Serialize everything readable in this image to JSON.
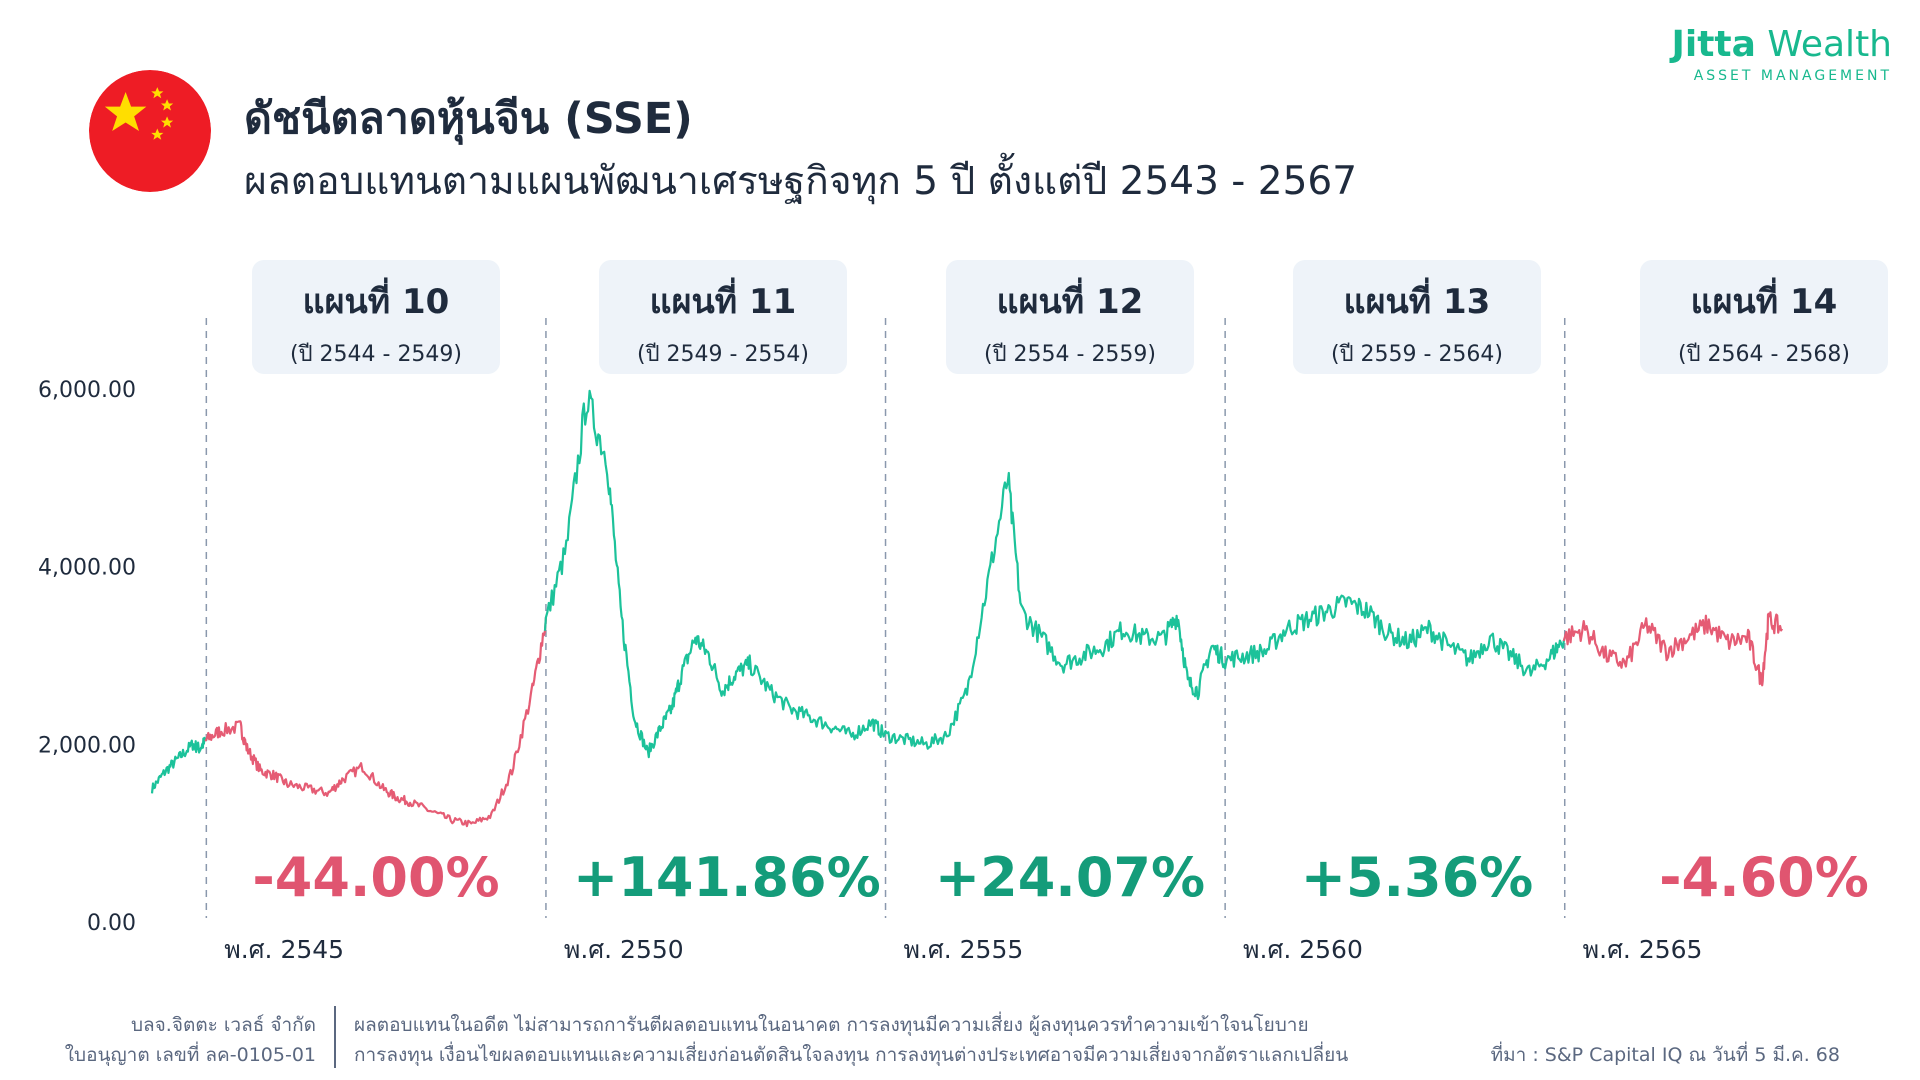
{
  "header": {
    "title": "ดัชนีตลาดหุ้นจีน (SSE)",
    "subtitle": "ผลตอบแทนตามแผนพัฒนาเศรษฐกิจทุก 5 ปี ตั้งแต่ปี 2543 - 2567"
  },
  "brand": {
    "name_bold": "Jitta",
    "name_light": " Wealth",
    "sub": "ASSET MANAGEMENT",
    "color": "#18b88e"
  },
  "colors": {
    "up": "#1cc29a",
    "down": "#e55c74",
    "up_text": "#149c7a",
    "down_text": "#e05570",
    "flag_red": "#ee1c25",
    "flag_star": "#ffde00"
  },
  "plans": [
    {
      "name": "แผนที่ 10",
      "years": "(ปี 2544 - 2549)",
      "return": "-44.00%",
      "direction": "down"
    },
    {
      "name": "แผนที่ 11",
      "years": "(ปี 2549 - 2554)",
      "return": "+141.86%",
      "direction": "up"
    },
    {
      "name": "แผนที่ 12",
      "years": "(ปี 2554 - 2559)",
      "return": "+24.07%",
      "direction": "up"
    },
    {
      "name": "แผนที่ 13",
      "years": "(ปี 2559 - 2564)",
      "return": "+5.36%",
      "direction": "up"
    },
    {
      "name": "แผนที่ 14",
      "years": "(ปี 2564 - 2568)",
      "return": "-4.60%",
      "direction": "down"
    }
  ],
  "chart_data": {
    "type": "line",
    "ylim": [
      0,
      6000
    ],
    "yticks": [
      "0.00",
      "2,000.00",
      "4,000.00",
      "6,000.00"
    ],
    "xlim": [
      2543.2,
      2568.2
    ],
    "xticks": [
      {
        "value": 2545,
        "label": "พ.ศ. 2545"
      },
      {
        "value": 2550,
        "label": "พ.ศ. 2550"
      },
      {
        "value": 2555,
        "label": "พ.ศ. 2555"
      },
      {
        "value": 2560,
        "label": "พ.ศ. 2560"
      },
      {
        "value": 2565,
        "label": "พ.ศ. 2565"
      }
    ],
    "plan_boundaries": [
      2544,
      2549,
      2554,
      2559,
      2564
    ],
    "x": [
      2543.2,
      2543.4,
      2543.6,
      2543.8,
      2543.9,
      2544.0,
      2544.2,
      2544.5,
      2544.6,
      2544.8,
      2545.0,
      2545.2,
      2545.5,
      2545.8,
      2546.0,
      2546.3,
      2546.6,
      2546.8,
      2547.0,
      2547.3,
      2547.6,
      2547.9,
      2548.2,
      2548.5,
      2548.8,
      2549.0,
      2549.3,
      2549.6,
      2549.9,
      2550.1,
      2550.3,
      2550.5,
      2550.7,
      2550.85,
      2551.0,
      2551.2,
      2551.4,
      2551.6,
      2551.8,
      2552.0,
      2552.3,
      2552.6,
      2552.9,
      2553.2,
      2553.5,
      2553.8,
      2554.0,
      2554.3,
      2554.6,
      2554.9,
      2555.2,
      2555.5,
      2555.8,
      2556.0,
      2556.3,
      2556.6,
      2556.9,
      2557.2,
      2557.5,
      2557.8,
      2558.1,
      2558.3,
      2558.45,
      2558.6,
      2558.8,
      2559.0,
      2559.3,
      2559.6,
      2559.9,
      2560.2,
      2560.5,
      2560.8,
      2561.1,
      2561.4,
      2561.7,
      2562.0,
      2562.3,
      2562.6,
      2562.9,
      2563.2,
      2563.5,
      2563.8,
      2564.0,
      2564.3,
      2564.6,
      2564.9,
      2565.2,
      2565.5,
      2565.8,
      2566.1,
      2566.4,
      2566.7,
      2566.9,
      2567.0,
      2567.2
    ],
    "y": [
      1500,
      1700,
      1850,
      2000,
      1950,
      2050,
      2150,
      2200,
      1950,
      1700,
      1650,
      1550,
      1500,
      1450,
      1600,
      1750,
      1500,
      1400,
      1350,
      1250,
      1150,
      1100,
      1200,
      1700,
      2600,
      3400,
      4200,
      5900,
      5200,
      3500,
      2300,
      1900,
      2200,
      2400,
      2800,
      3200,
      3000,
      2600,
      2800,
      2900,
      2600,
      2400,
      2300,
      2200,
      2100,
      2250,
      2100,
      2050,
      2000,
      2100,
      2600,
      3800,
      5000,
      3500,
      3200,
      2900,
      3000,
      3100,
      3300,
      3200,
      3200,
      3450,
      2700,
      2600,
      3100,
      2950,
      3000,
      3050,
      3300,
      3400,
      3500,
      3600,
      3500,
      3250,
      3150,
      3300,
      3100,
      2950,
      3200,
      3000,
      2800,
      3000,
      3200,
      3300,
      3000,
      2900,
      3350,
      3050,
      3200,
      3350,
      3150,
      3200,
      2700,
      3400,
      3300
    ]
  },
  "footer": {
    "company": "บลจ.จิตตะ เวลธ์ จำกัด",
    "license": "ใบอนุญาต เลขที่ ลค-0105-01",
    "disclaimer_1": "ผลตอบแทนในอดีต ไม่สามารถการันตีผลตอบแทนในอนาคต การลงทุนมีความเสี่ยง ผู้ลงทุนควรทำความเข้าใจนโยบาย",
    "disclaimer_2": "การลงทุน เงื่อนไขผลตอบแทนและความเสี่ยงก่อนตัดสินใจลงทุน การลงทุนต่างประเทศอาจมีความเสี่ยงจากอัตราแลกเปลี่ยน",
    "source": "ที่มา : S&P Capital IQ  ณ วันที่ 5 มี.ค. 68"
  }
}
